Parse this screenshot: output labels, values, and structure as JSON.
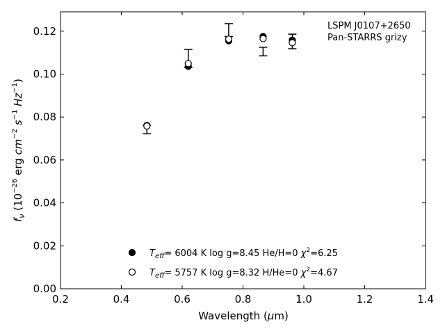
{
  "chart_data": {
    "type": "scatter",
    "annotation": {
      "line1": "LSPM J0107+2650",
      "line2": "Pan-STARRS grizy"
    },
    "xlabel": "Wavelength (μm)",
    "ylabel": "f_ν (10^-26 erg cm^-2 s^-1 Hz^-1)",
    "xlim": [
      0.2,
      1.4
    ],
    "ylim": [
      0.0,
      0.129
    ],
    "x_ticks": [
      0.2,
      0.4,
      0.6,
      0.8,
      1.0,
      1.2,
      1.4
    ],
    "x_tick_labels": [
      "0.2",
      "0.4",
      "0.6",
      "0.8",
      "1.0",
      "1.2",
      "1.4"
    ],
    "y_ticks": [
      0.0,
      0.02,
      0.04,
      0.06,
      0.08,
      0.1,
      0.12
    ],
    "y_tick_labels": [
      "0.00",
      "0.02",
      "0.04",
      "0.06",
      "0.08",
      "0.10",
      "0.12"
    ],
    "observed": {
      "x": [
        0.484,
        0.62,
        0.753,
        0.866,
        0.962
      ],
      "y": [
        0.0745,
        0.1055,
        0.1175,
        0.1125,
        0.1152
      ],
      "yerr_low": [
        0.0023,
        0.0025,
        0.0,
        0.004,
        0.0034
      ],
      "yerr_high": [
        0.0017,
        0.006,
        0.006,
        0.0,
        0.0034
      ]
    },
    "series": [
      {
        "marker": "filled-circle",
        "legend": {
          "teff": "6004 K",
          "logg": "log g=8.45",
          "comp": "He/H=0",
          "chi2": "χ²=6.25"
        },
        "x": [
          0.484,
          0.62,
          0.753,
          0.866,
          0.962
        ],
        "y": [
          0.0761,
          0.1036,
          0.1155,
          0.1175,
          0.1158
        ]
      },
      {
        "marker": "open-circle",
        "legend": {
          "teff": "5757 K",
          "logg": "log g=8.32",
          "comp": "H/He=0",
          "chi2": "χ²=4.67"
        },
        "x": [
          0.484,
          0.62,
          0.753,
          0.866,
          0.962
        ],
        "y": [
          0.0758,
          0.1049,
          0.1163,
          0.1165,
          0.1146
        ]
      }
    ],
    "legend_position": "lower-center",
    "grid": false
  }
}
